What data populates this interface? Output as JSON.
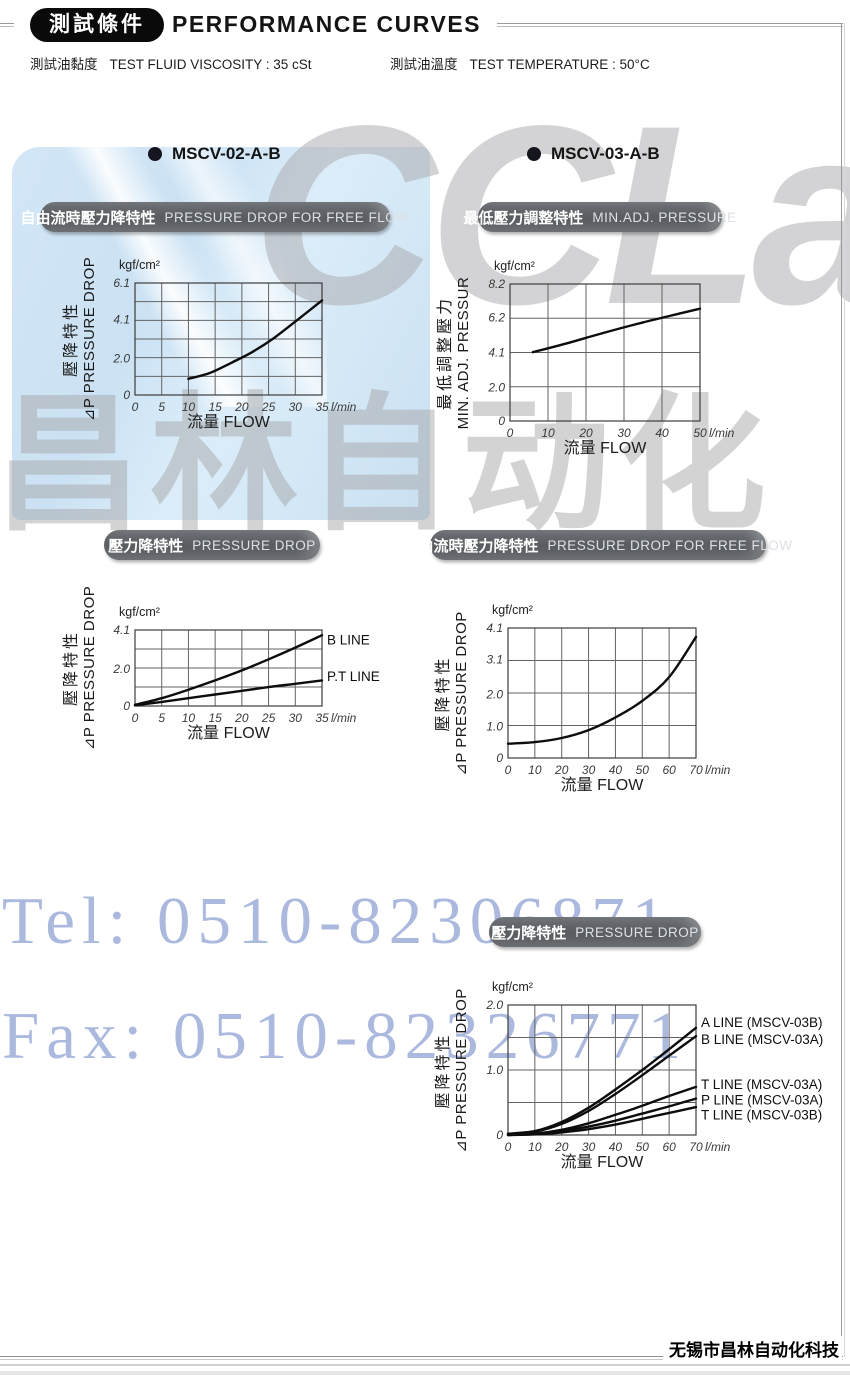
{
  "header": {
    "badge": "測試條件",
    "title": "PERFORMANCE CURVES",
    "conditions": [
      {
        "zh": "測試油黏度",
        "en": "TEST FLUID VISCOSITY : 35 cSt"
      },
      {
        "zh": "測試油溫度",
        "en": "TEST TEMPERATURE : 50°C"
      }
    ]
  },
  "sections": [
    {
      "model": "MSCV-02-A-B"
    },
    {
      "model": "MSCV-03-A-B"
    }
  ],
  "watermark": {
    "logo": "CCLair",
    "brand_zh": "昌林自动化",
    "tel": "Tel: 0510-82306871",
    "fax": "Fax: 0510-82326771",
    "color": "#9dadd8"
  },
  "footer": {
    "company": "无锡市昌林自动化科技"
  },
  "chart_data": [
    {
      "id": "mscv02-free-flow",
      "model": "MSCV-02-A-B",
      "type": "line",
      "title_zh": "自由流時壓力降特性",
      "title_en": "PRESSURE DROP  FOR FREE FLOW",
      "unit": "kgf/cm²",
      "ylabel_zh": "壓降特性",
      "ylabel_en": "⊿P PRESSURE DROP",
      "xlabel": "流量 FLOW",
      "xunit": "l/min",
      "xlim": [
        0,
        35
      ],
      "ylim": [
        0,
        6.1
      ],
      "xticks": [
        0,
        5,
        10,
        15,
        20,
        25,
        30,
        35
      ],
      "yticks": [
        {
          "v": 0,
          "t": "0"
        },
        {
          "v": 2.0,
          "t": "2.0"
        },
        {
          "v": 4.1,
          "t": "4.1"
        },
        {
          "v": 6.1,
          "t": "6.1"
        }
      ],
      "ygrid_div": 6,
      "series": [
        {
          "name": "",
          "points": [
            [
              10,
              0.88
            ],
            [
              14,
              1.2
            ],
            [
              18,
              1.75
            ],
            [
              22,
              2.35
            ],
            [
              26,
              3.1
            ],
            [
              30,
              4.0
            ],
            [
              35,
              5.15
            ]
          ]
        }
      ]
    },
    {
      "id": "mscv03-min-adj-pressure",
      "model": "MSCV-03-A-B",
      "type": "line",
      "title_zh": "最低壓力調整特性",
      "title_en": "MIN.ADJ. PRESSURE",
      "unit": "kgf/cm²",
      "ylabel_zh": "最低調整壓力",
      "ylabel_en": "MIN. ADJ. PRESSUR",
      "xlabel": "流量 FLOW",
      "xunit": "l/min",
      "xlim": [
        0,
        50
      ],
      "ylim": [
        0,
        8.2
      ],
      "xticks": [
        0,
        10,
        20,
        30,
        40,
        50
      ],
      "yticks": [
        {
          "v": 0,
          "t": "0"
        },
        {
          "v": 2.0,
          "t": "2.0"
        },
        {
          "v": 4.1,
          "t": "4.1"
        },
        {
          "v": 6.2,
          "t": "6.2"
        },
        {
          "v": 8.2,
          "t": "8.2"
        }
      ],
      "ygrid_div": 4,
      "series": [
        {
          "name": "",
          "points": [
            [
              6,
              4.12
            ],
            [
              15,
              4.65
            ],
            [
              25,
              5.3
            ],
            [
              35,
              5.9
            ],
            [
              45,
              6.45
            ],
            [
              50,
              6.72
            ]
          ]
        }
      ]
    },
    {
      "id": "mscv02-pressure-drop",
      "model": "MSCV-02-A-B",
      "type": "line",
      "title_zh": "壓力降特性",
      "title_en": "PRESSURE DROP",
      "unit": "kgf/cm²",
      "ylabel_zh": "壓降特性",
      "ylabel_en": "⊿P PRESSURE DROP",
      "xlabel": "流量 FLOW",
      "xunit": "l/min",
      "xlim": [
        0,
        35
      ],
      "ylim": [
        0,
        4.1
      ],
      "xticks": [
        0,
        5,
        10,
        15,
        20,
        25,
        30,
        35
      ],
      "yticks": [
        {
          "v": 0,
          "t": "0"
        },
        {
          "v": 2.0,
          "t": "2.0"
        },
        {
          "v": 4.1,
          "t": "4.1"
        }
      ],
      "ygrid_div": 4,
      "series": [
        {
          "name": "B LINE",
          "label_v": 3.57,
          "points": [
            [
              0,
              0.06
            ],
            [
              5,
              0.42
            ],
            [
              10,
              0.88
            ],
            [
              15,
              1.38
            ],
            [
              20,
              1.92
            ],
            [
              25,
              2.52
            ],
            [
              30,
              3.15
            ],
            [
              35,
              3.82
            ]
          ]
        },
        {
          "name": "P.T LINE",
          "label_v": 1.6,
          "points": [
            [
              0,
              0.04
            ],
            [
              5,
              0.22
            ],
            [
              10,
              0.42
            ],
            [
              15,
              0.62
            ],
            [
              20,
              0.82
            ],
            [
              25,
              1.02
            ],
            [
              30,
              1.2
            ],
            [
              35,
              1.38
            ]
          ]
        }
      ]
    },
    {
      "id": "mscv03-free-flow",
      "model": "MSCV-03-A-B",
      "type": "line",
      "title_zh": "自由流時壓力降特性",
      "title_en": "PRESSURE DROP  FOR FREE FLOW",
      "unit": "kgf/cm²",
      "ylabel_zh": "壓降特性",
      "ylabel_en": "⊿P PRESSURE DROP",
      "xlabel": "流量 FLOW",
      "xunit": "l/min",
      "xlim": [
        0,
        70
      ],
      "ylim": [
        0,
        4.1
      ],
      "xticks": [
        0,
        10,
        20,
        30,
        40,
        50,
        60,
        70
      ],
      "yticks": [
        {
          "v": 0,
          "t": "0"
        },
        {
          "v": 1.0,
          "t": "1.0"
        },
        {
          "v": 2.0,
          "t": "2.0"
        },
        {
          "v": 3.1,
          "t": "3.1"
        },
        {
          "v": 4.1,
          "t": "4.1"
        }
      ],
      "ygrid_div": 4,
      "series": [
        {
          "name": "",
          "points": [
            [
              0,
              0.45
            ],
            [
              10,
              0.5
            ],
            [
              20,
              0.63
            ],
            [
              30,
              0.88
            ],
            [
              40,
              1.28
            ],
            [
              50,
              1.8
            ],
            [
              60,
              2.55
            ],
            [
              70,
              3.82
            ]
          ]
        }
      ]
    },
    {
      "id": "mscv03-pressure-drop",
      "model": "MSCV-03-A-B",
      "type": "line",
      "title_zh": "壓力降特性",
      "title_en": "PRESSURE DROP",
      "unit": "kgf/cm²",
      "ylabel_zh": "壓降特性",
      "ylabel_en": "⊿P PRESSURE DROP",
      "xlabel": "流量 FLOW",
      "xunit": "l/min",
      "xlim": [
        0,
        70
      ],
      "ylim": [
        0,
        2.0
      ],
      "xticks": [
        0,
        10,
        20,
        30,
        40,
        50,
        60,
        70
      ],
      "yticks": [
        {
          "v": 0,
          "t": "0"
        },
        {
          "v": 1.0,
          "t": "1.0"
        },
        {
          "v": 2.0,
          "t": "2.0"
        }
      ],
      "ygrid_div": 4,
      "series": [
        {
          "name": "A LINE (MSCV-03B)",
          "label_v": 1.73,
          "points": [
            [
              0,
              0.02
            ],
            [
              10,
              0.06
            ],
            [
              20,
              0.2
            ],
            [
              30,
              0.42
            ],
            [
              40,
              0.7
            ],
            [
              50,
              1.0
            ],
            [
              60,
              1.32
            ],
            [
              70,
              1.65
            ]
          ]
        },
        {
          "name": "B LINE (MSCV-03A)",
          "label_v": 1.47,
          "points": [
            [
              0,
              0.01
            ],
            [
              10,
              0.05
            ],
            [
              20,
              0.17
            ],
            [
              30,
              0.37
            ],
            [
              40,
              0.63
            ],
            [
              50,
              0.92
            ],
            [
              60,
              1.22
            ],
            [
              70,
              1.52
            ]
          ]
        },
        {
          "name": "T LINE (MSCV-03A)",
          "label_v": 0.78,
          "points": [
            [
              0,
              0
            ],
            [
              10,
              0.02
            ],
            [
              20,
              0.08
            ],
            [
              30,
              0.18
            ],
            [
              40,
              0.31
            ],
            [
              50,
              0.45
            ],
            [
              60,
              0.6
            ],
            [
              70,
              0.74
            ]
          ]
        },
        {
          "name": "P LINE (MSCV-03A)",
          "label_v": 0.54,
          "points": [
            [
              0,
              0
            ],
            [
              10,
              0.015
            ],
            [
              20,
              0.06
            ],
            [
              30,
              0.13
            ],
            [
              40,
              0.22
            ],
            [
              50,
              0.33
            ],
            [
              60,
              0.44
            ],
            [
              70,
              0.56
            ]
          ]
        },
        {
          "name": "T LINE (MSCV-03B)",
          "label_v": 0.31,
          "points": [
            [
              0,
              0
            ],
            [
              10,
              0.01
            ],
            [
              20,
              0.04
            ],
            [
              30,
              0.09
            ],
            [
              40,
              0.16
            ],
            [
              50,
              0.25
            ],
            [
              60,
              0.34
            ],
            [
              70,
              0.43
            ]
          ]
        }
      ]
    }
  ]
}
